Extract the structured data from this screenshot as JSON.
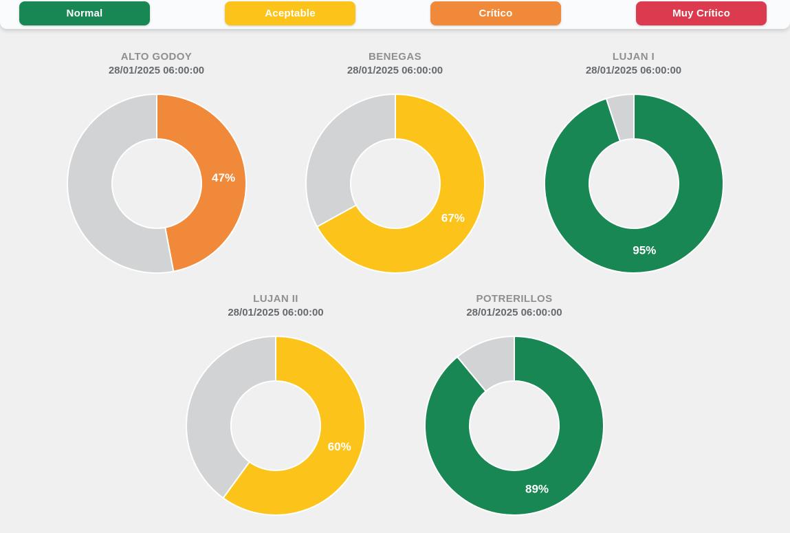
{
  "page": {
    "background_color": "#f0f0f1",
    "topbar_color": "#fafbfc"
  },
  "legend": {
    "items": [
      {
        "id": "normal",
        "label": "Normal",
        "color": "#198754"
      },
      {
        "id": "aceptable",
        "label": "Aceptable",
        "color": "#fcc41b"
      },
      {
        "id": "critico",
        "label": "Crítico",
        "color": "#f0893a"
      },
      {
        "id": "muy-critico",
        "label": "Muy Crítico",
        "color": "#dc3a4e"
      }
    ]
  },
  "donut_style": {
    "outer_radius": 130,
    "inner_radius": 65,
    "separator_color": "#ffffff",
    "remainder_color": "#d2d3d4",
    "label_color": "#ffffff"
  },
  "chart_data": [
    {
      "type": "pie",
      "title": "ALTO GODOY",
      "subtitle": "28/01/2025 06:00:00",
      "value_pct": 47,
      "data_label": "47%",
      "status": "Crítico",
      "slice_color": "#f0893a",
      "remainder_pct": 53,
      "row": 1
    },
    {
      "type": "pie",
      "title": "BENEGAS",
      "subtitle": "28/01/2025 06:00:00",
      "value_pct": 67,
      "data_label": "67%",
      "status": "Aceptable",
      "slice_color": "#fcc41b",
      "remainder_pct": 33,
      "row": 1
    },
    {
      "type": "pie",
      "title": "LUJAN I",
      "subtitle": "28/01/2025 06:00:00",
      "value_pct": 95,
      "data_label": "95%",
      "status": "Normal",
      "slice_color": "#198754",
      "remainder_pct": 5,
      "row": 1
    },
    {
      "type": "pie",
      "title": "LUJAN II",
      "subtitle": "28/01/2025 06:00:00",
      "value_pct": 60,
      "data_label": "60%",
      "status": "Aceptable",
      "slice_color": "#fcc41b",
      "remainder_pct": 40,
      "row": 2
    },
    {
      "type": "pie",
      "title": "POTRERILLOS",
      "subtitle": "28/01/2025 06:00:00",
      "value_pct": 89,
      "data_label": "89%",
      "status": "Normal",
      "slice_color": "#198754",
      "remainder_pct": 11,
      "row": 2
    }
  ]
}
